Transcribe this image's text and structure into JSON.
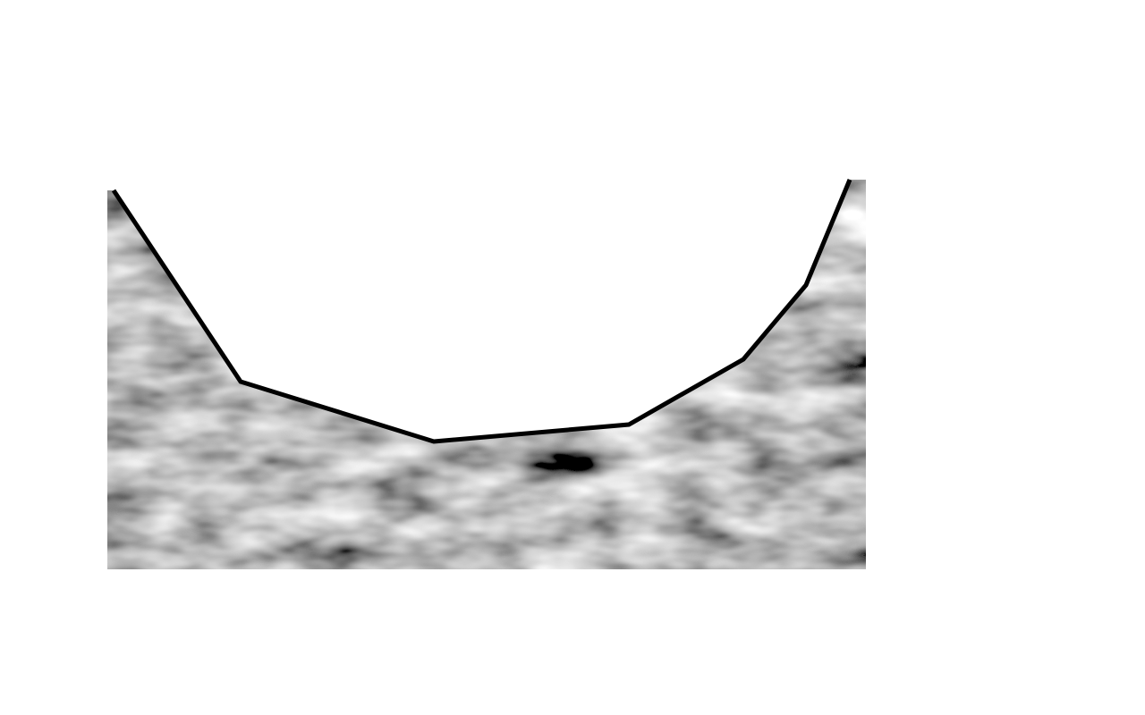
{
  "diagram": {
    "kind": "terrain-profile",
    "fill_style": "grayscale-noise-texture",
    "profile_stroke_color": "#000000",
    "background_color": "#ffffff",
    "texture_colors": {
      "dark": "#1e1e1e",
      "light": "#d8d8d8"
    }
  }
}
